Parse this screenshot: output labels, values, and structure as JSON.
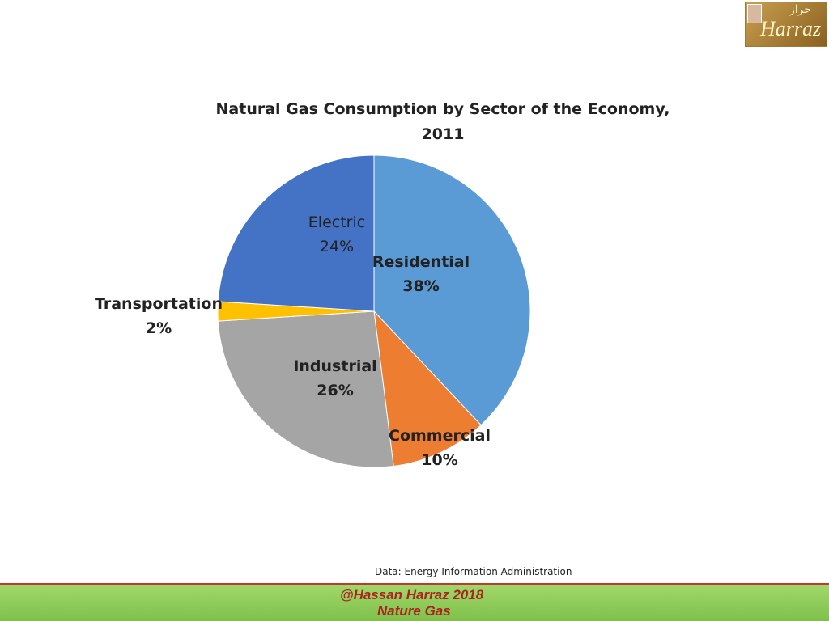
{
  "chart_data": {
    "type": "pie",
    "title": "Natural Gas Consumption by Sector of the Economy, 2011",
    "categories": [
      "Residential",
      "Commercial",
      "Industrial",
      "Transportation",
      "Electric"
    ],
    "values": [
      38,
      10,
      26,
      2,
      24
    ],
    "value_labels": [
      "38%",
      "10%",
      "26%",
      "2%",
      "24%"
    ],
    "colors": [
      "#5b9bd5",
      "#ed7d31",
      "#a5a5a5",
      "#ffc000",
      "#4472c4"
    ],
    "source": "Data: Energy Information Administration"
  },
  "footer": {
    "line1": "@Hassan Harraz 2018",
    "line2": "Nature Gas"
  },
  "logo": {
    "text": "Harraz",
    "arabic": "حراز"
  }
}
